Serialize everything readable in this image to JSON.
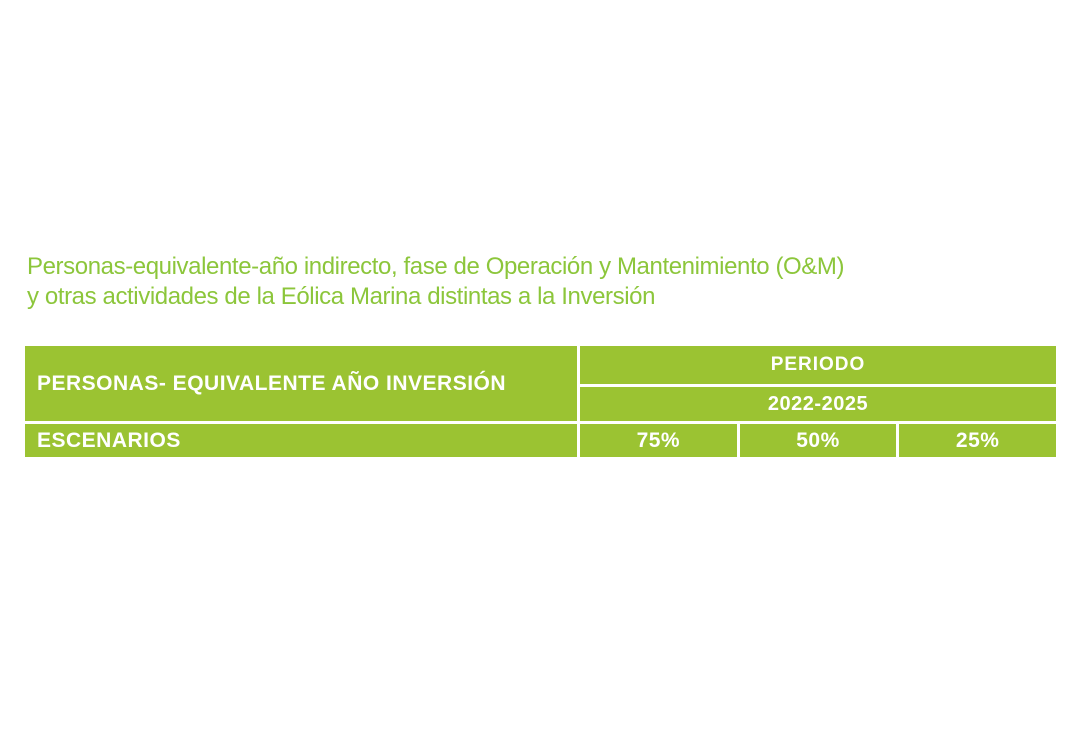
{
  "caption": {
    "line1": "Personas-equivalente-año indirecto, fase de Operación y Mantenimiento (O&M)",
    "line2": "y otras actividades de la Eólica Marina distintas a la Inversión"
  },
  "table": {
    "header_left": "PERSONAS- EQUIVALENTE AÑO INVERSIÓN",
    "period_header": "PERIODO",
    "period_range": "2022-2025",
    "row_label": "ESCENARIOS",
    "scenarios": [
      "75%",
      "50%",
      "25%"
    ]
  },
  "chart_data": {
    "type": "table",
    "title": "Personas-equivalente-año indirecto, fase de Operación y Mantenimiento (O&M) y otras actividades de la Eólica Marina distintas a la Inversión",
    "columns": [
      "PERSONAS- EQUIVALENTE AÑO INVERSIÓN",
      "PERIODO 2022-2025"
    ],
    "rows": [
      [
        "ESCENARIOS",
        "75%",
        "50%",
        "25%"
      ]
    ]
  },
  "colors": {
    "table_green": "#9bc332",
    "title_green": "#8cc63b",
    "cell_text": "#ffffff",
    "page_background": "#ffffff"
  }
}
